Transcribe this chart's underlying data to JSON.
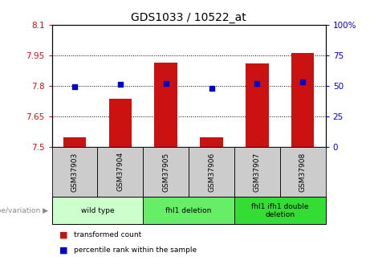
{
  "title": "GDS1033 / 10522_at",
  "samples": [
    "GSM37903",
    "GSM37904",
    "GSM37905",
    "GSM37906",
    "GSM37907",
    "GSM37908"
  ],
  "red_values": [
    7.545,
    7.735,
    7.915,
    7.548,
    7.91,
    7.96
  ],
  "blue_values": [
    49,
    51,
    52,
    48,
    52,
    53
  ],
  "ylim_left": [
    7.5,
    8.1
  ],
  "ylim_right": [
    0,
    100
  ],
  "yticks_left": [
    7.5,
    7.65,
    7.8,
    7.95,
    8.1
  ],
  "yticks_right": [
    0,
    25,
    50,
    75,
    100
  ],
  "ytick_labels_left": [
    "7.5",
    "7.65",
    "7.8",
    "7.95",
    "8.1"
  ],
  "ytick_labels_right": [
    "0",
    "25",
    "50",
    "75",
    "100%"
  ],
  "bar_color": "#cc1111",
  "dot_color": "#0000cc",
  "bar_width": 0.5,
  "group_data": [
    {
      "indices": [
        0,
        1
      ],
      "label": "wild type",
      "color": "#ccffcc"
    },
    {
      "indices": [
        2,
        3
      ],
      "label": "fhl1 deletion",
      "color": "#66ee66"
    },
    {
      "indices": [
        4,
        5
      ],
      "label": "fhl1 ifh1 double\ndeletion",
      "color": "#33dd33"
    }
  ],
  "legend_red": "transformed count",
  "legend_blue": "percentile rank within the sample",
  "genotype_label": "genotype/variation",
  "sample_box_color": "#cccccc",
  "left_tick_color": "#cc1111",
  "right_tick_color": "#0000cc",
  "grid_yticks": [
    7.65,
    7.8,
    7.95
  ]
}
